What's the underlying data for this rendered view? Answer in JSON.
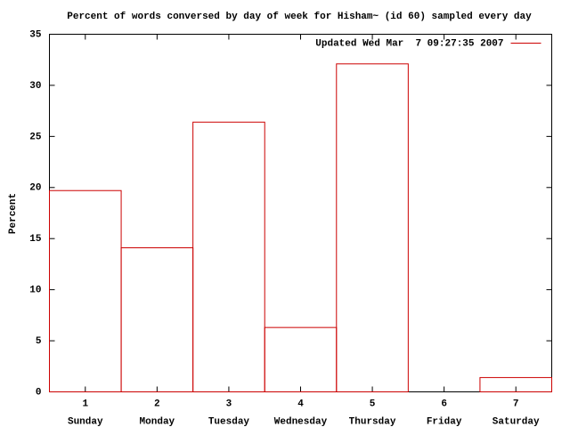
{
  "chart_data": {
    "type": "bar",
    "title": "Percent of words conversed by day of week for Hisham~ (id 60) sampled every day",
    "y_label": "Percent",
    "x": [
      1,
      2,
      3,
      4,
      5,
      6,
      7
    ],
    "categories": [
      "Sunday",
      "Monday",
      "Tuesday",
      "Wednesday",
      "Thursday",
      "Friday",
      "Saturday"
    ],
    "series": [
      {
        "name": "Updated Wed Mar  7 09:27:35 2007",
        "color": "#cc0000",
        "values": [
          19.7,
          14.1,
          26.4,
          6.3,
          32.1,
          0,
          1.4
        ]
      }
    ],
    "xlim": [
      0.5,
      7.5
    ],
    "xticks": [
      1,
      2,
      3,
      4,
      5,
      6,
      7
    ],
    "ylim": [
      0,
      35
    ],
    "yticks": [
      0,
      5,
      10,
      15,
      20,
      25,
      30,
      35
    ],
    "legend": "top-right",
    "grid": false
  }
}
